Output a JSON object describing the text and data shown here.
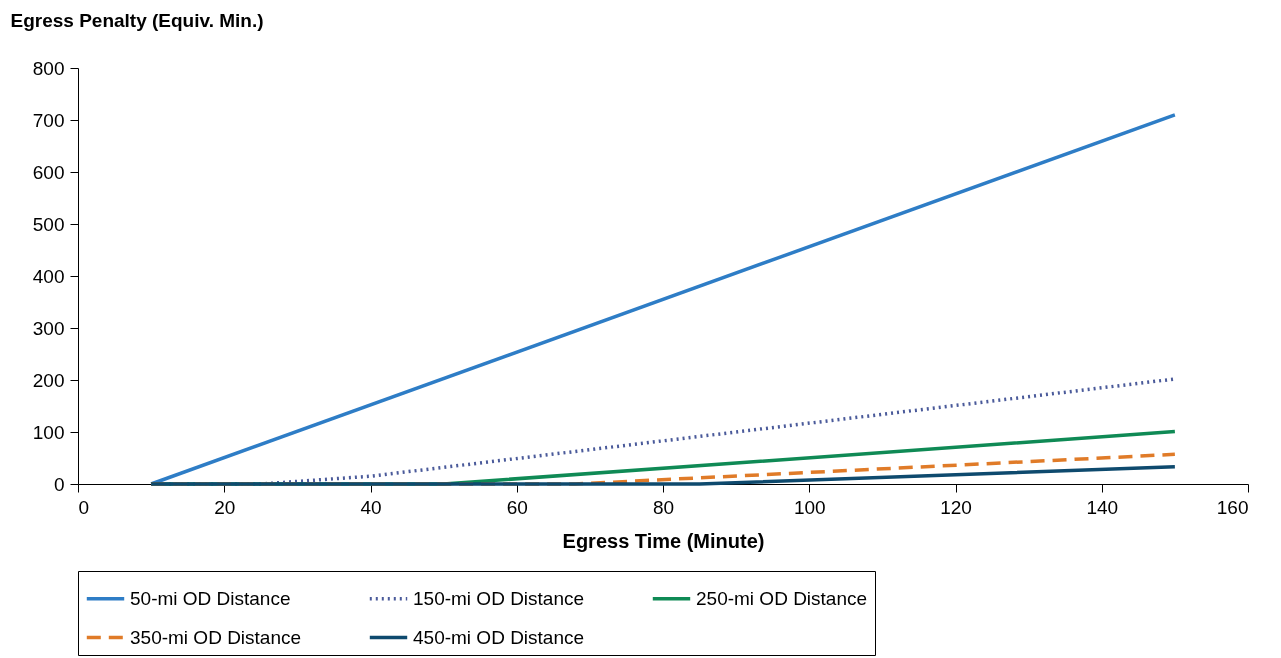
{
  "chart_data": {
    "type": "line",
    "xlabel": "Egress Time (Minute)",
    "ylabel": "Egress Penalty (Equiv. Min.)",
    "xlim": [
      0,
      160
    ],
    "xticks": [
      0,
      20,
      40,
      60,
      80,
      100,
      120,
      140,
      160
    ],
    "ylim": [
      0,
      800
    ],
    "yticks": [
      0,
      100,
      200,
      300,
      400,
      500,
      600,
      700,
      800
    ],
    "grid": false,
    "legend": "bottom",
    "marker": "none",
    "series": [
      {
        "name": "50-mi OD Distance",
        "color": "#2e7dc6",
        "line_style": "solid",
        "x": [
          10,
          150
        ],
        "values": [
          0,
          710
        ]
      },
      {
        "name": "150-mi OD Distance",
        "color": "#4a5a9a",
        "line_style": "dotted",
        "x": [
          10,
          25,
          40,
          150
        ],
        "values": [
          0,
          0,
          15,
          202
        ]
      },
      {
        "name": "250-mi OD Distance",
        "color": "#0f8a55",
        "line_style": "solid",
        "x": [
          10,
          50,
          150
        ],
        "values": [
          0,
          0,
          101
        ]
      },
      {
        "name": "350-mi OD Distance",
        "color": "#e07b28",
        "line_style": "dashed",
        "x": [
          10,
          68,
          150
        ],
        "values": [
          0,
          0,
          57
        ]
      },
      {
        "name": "450-mi OD Distance",
        "color": "#0e4a6e",
        "line_style": "solid",
        "x": [
          10,
          85,
          150
        ],
        "values": [
          0,
          0,
          33
        ]
      }
    ]
  }
}
